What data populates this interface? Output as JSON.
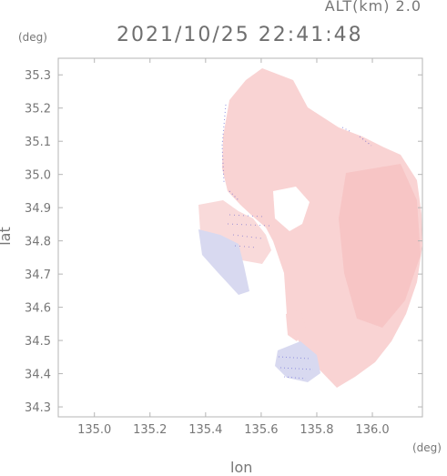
{
  "header": {
    "altitude_label": "ALT(km) 2.0",
    "timestamp": "2021/10/25 22:41:48"
  },
  "axes": {
    "x": {
      "title": "lon",
      "unit": "(deg)",
      "ticks": [
        "135.0",
        "135.2",
        "135.4",
        "135.6",
        "135.8",
        "136.0"
      ],
      "tick_values": [
        135.0,
        135.2,
        135.4,
        135.6,
        135.8,
        136.0
      ],
      "range": [
        134.87,
        136.18
      ]
    },
    "y": {
      "title": "lat",
      "unit": "(deg)",
      "ticks": [
        "34.3",
        "34.4",
        "34.5",
        "34.6",
        "34.7",
        "34.8",
        "34.9",
        "35.0",
        "35.1",
        "35.2",
        "35.3"
      ],
      "tick_values": [
        34.3,
        34.4,
        34.5,
        34.6,
        34.7,
        34.8,
        34.9,
        35.0,
        35.1,
        35.2,
        35.3
      ],
      "range": [
        34.27,
        35.35
      ]
    }
  },
  "field": {
    "positive_color": "#f9d3d3",
    "positive_strong_color": "#f6c0c0",
    "negative_color": "#d8d9f0",
    "speckle_color": "#4444cc",
    "frame_color": "#b5b5b5",
    "text_color": "#777777"
  }
}
